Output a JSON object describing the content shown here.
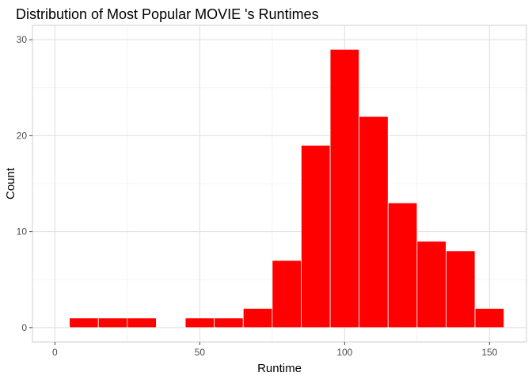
{
  "chart_data": {
    "type": "bar",
    "title": "Distribution of Most Popular MOVIE 's Runtimes",
    "xlabel": "Runtime",
    "ylabel": "Count",
    "bin_width": 10,
    "bins": [
      {
        "from": 5,
        "to": 15,
        "count": 1
      },
      {
        "from": 15,
        "to": 25,
        "count": 1
      },
      {
        "from": 25,
        "to": 35,
        "count": 1
      },
      {
        "from": 35,
        "to": 45,
        "count": 0
      },
      {
        "from": 45,
        "to": 55,
        "count": 1
      },
      {
        "from": 55,
        "to": 65,
        "count": 1
      },
      {
        "from": 65,
        "to": 75,
        "count": 2
      },
      {
        "from": 75,
        "to": 85,
        "count": 7
      },
      {
        "from": 85,
        "to": 95,
        "count": 19
      },
      {
        "from": 95,
        "to": 105,
        "count": 29
      },
      {
        "from": 105,
        "to": 115,
        "count": 22
      },
      {
        "from": 115,
        "to": 125,
        "count": 13
      },
      {
        "from": 125,
        "to": 135,
        "count": 9
      },
      {
        "from": 135,
        "to": 145,
        "count": 8
      },
      {
        "from": 145,
        "to": 155,
        "count": 2
      }
    ],
    "xlim": [
      0,
      155
    ],
    "ylim": [
      0,
      30
    ],
    "x_ticks": [
      0,
      50,
      100,
      150
    ],
    "y_ticks": [
      0,
      10,
      20,
      30
    ],
    "bar_color": "#ff0000",
    "grid": true,
    "legend": "none"
  }
}
